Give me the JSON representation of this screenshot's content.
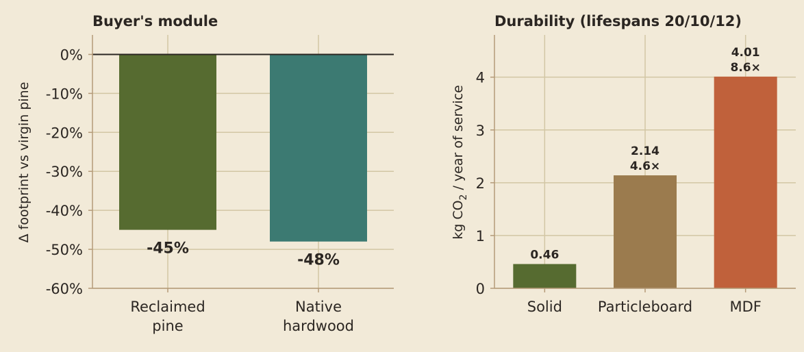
{
  "chart_data": [
    {
      "type": "bar",
      "title": "Buyer's module",
      "ylabel": "Δ footprint vs virgin pine",
      "categories": [
        [
          "Reclaimed",
          "pine"
        ],
        [
          "Native",
          "hardwood"
        ]
      ],
      "values": [
        -45,
        -48
      ],
      "data_labels": [
        "-45%",
        "-48%"
      ],
      "colors": [
        "#566b30",
        "#3c7a72"
      ],
      "ylim": [
        -60,
        5
      ],
      "yticks": [
        0,
        -10,
        -20,
        -30,
        -40,
        -50,
        -60
      ],
      "ytick_labels": [
        "0%",
        "-10%",
        "-20%",
        "-30%",
        "-40%",
        "-50%",
        "-60%"
      ],
      "grid": true,
      "zero_line": true
    },
    {
      "type": "bar",
      "title": "Durability (lifespans 20/10/12)",
      "ylabel_parts": [
        "kg CO",
        "2",
        " / year of service"
      ],
      "categories": [
        "Solid",
        "Particleboard",
        "MDF"
      ],
      "values": [
        0.46,
        2.14,
        4.01
      ],
      "data_labels": [
        [
          "0.46"
        ],
        [
          "2.14",
          "4.6×"
        ],
        [
          "4.01",
          "8.6×"
        ]
      ],
      "colors": [
        "#566b30",
        "#9b7b4e",
        "#c0613b"
      ],
      "ylim": [
        0,
        4.8
      ],
      "yticks": [
        0,
        1,
        2,
        3,
        4
      ],
      "ytick_labels": [
        "0",
        "1",
        "2",
        "3",
        "4"
      ],
      "grid": true
    }
  ]
}
